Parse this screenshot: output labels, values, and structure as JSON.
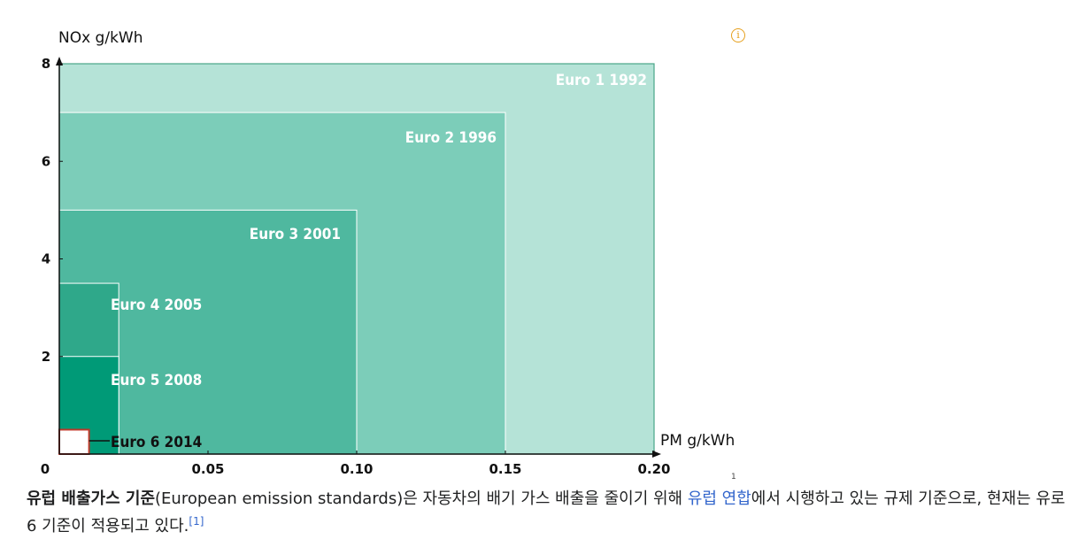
{
  "chart_data": {
    "type": "area",
    "title": "",
    "xlabel": "PM g/kWh",
    "ylabel": "NOx g/kWh",
    "xlim": [
      0,
      0.2
    ],
    "ylim": [
      0,
      8
    ],
    "x_ticks": [
      "0",
      "0.05",
      "0.10",
      "0.15",
      "0.20"
    ],
    "y_ticks": [
      "2",
      "4",
      "6",
      "8"
    ],
    "grid": false,
    "regions": [
      {
        "label": "Euro 1  1992",
        "pm": 0.2,
        "nox": 8.0,
        "color": "#b5e3d7",
        "text_color": "#ffffff"
      },
      {
        "label": "Euro 2  1996",
        "pm": 0.15,
        "nox": 7.0,
        "color": "#7ccdb9",
        "text_color": "#ffffff"
      },
      {
        "label": "Euro 3  2001",
        "pm": 0.1,
        "nox": 5.0,
        "color": "#4fb89f",
        "text_color": "#ffffff"
      },
      {
        "label": "Euro 4  2005",
        "pm": 0.02,
        "nox": 3.5,
        "color": "#2fa88a",
        "text_color": "#ffffff"
      },
      {
        "label": "Euro 5  2008",
        "pm": 0.02,
        "nox": 2.0,
        "color": "#009a77",
        "text_color": "#ffffff"
      },
      {
        "label": "Euro 6  2014",
        "pm": 0.01,
        "nox": 0.5,
        "color": "#ffffff",
        "text_color": "#111111",
        "outline": "#c0392b"
      }
    ]
  },
  "ref_mark": "1",
  "info_icon": {
    "name": "info-icon",
    "glyph": "i",
    "color": "#e6a01e"
  },
  "caption": {
    "term": "유럽 배출가스 기준",
    "paren": "(European emission standards)",
    "text1": "은 자동차의 배기 가스 배출을 줄이기 위해 ",
    "link": "유럽 연합",
    "text2": "에서 시행하고 있는 규제 기준으로, 현재는 유로 6 기준이 적용되고 있다.",
    "cite": "[1]"
  }
}
